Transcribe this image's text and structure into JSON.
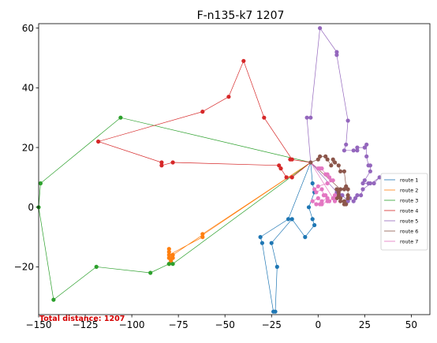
{
  "chart_data": {
    "type": "line",
    "title": "F-n135-k7 1207",
    "xlabel": "",
    "ylabel": "",
    "xlim": [
      -150,
      60
    ],
    "ylim": [
      -36,
      61.5
    ],
    "xticks": [
      -150,
      -125,
      -100,
      -75,
      -50,
      -25,
      0,
      25,
      50
    ],
    "yticks": [
      -20,
      0,
      20,
      40,
      60
    ],
    "grid": false,
    "legend_position": "right",
    "annotation": {
      "text": "Total distance: 1207",
      "color": "#d40000"
    },
    "depot": [
      -4,
      15
    ],
    "series": [
      {
        "name": "route 1",
        "color": "#1f77b4",
        "points": [
          [
            -4,
            15
          ],
          [
            -3,
            8
          ],
          [
            -2,
            5
          ],
          [
            -5,
            0
          ],
          [
            -3,
            -4
          ],
          [
            -2,
            -6
          ],
          [
            -7,
            -10
          ],
          [
            -14,
            -4
          ],
          [
            -25,
            -12
          ],
          [
            -22,
            -20
          ],
          [
            -23,
            -35
          ],
          [
            -24,
            -35
          ],
          [
            -30,
            -12
          ],
          [
            -31,
            -10
          ],
          [
            -16,
            -4
          ],
          [
            -4,
            15
          ]
        ]
      },
      {
        "name": "route 2",
        "color": "#ff7f0e",
        "points": [
          [
            -4,
            15
          ],
          [
            -78,
            -16
          ],
          [
            -80,
            -17
          ],
          [
            -80,
            -15
          ],
          [
            -80,
            -14
          ],
          [
            -79,
            -18
          ],
          [
            -80,
            -19
          ],
          [
            -78,
            -17
          ],
          [
            -80,
            -16
          ],
          [
            -62,
            -10
          ],
          [
            -62,
            -9
          ],
          [
            -4,
            15
          ]
        ]
      },
      {
        "name": "route 3",
        "color": "#2ca02c",
        "points": [
          [
            -4,
            15
          ],
          [
            -106,
            30
          ],
          [
            -149,
            8
          ],
          [
            -150,
            0
          ],
          [
            -142,
            -31
          ],
          [
            -119,
            -20
          ],
          [
            -90,
            -22
          ],
          [
            -80,
            -19
          ],
          [
            -78,
            -19
          ],
          [
            -4,
            15
          ]
        ]
      },
      {
        "name": "route 4",
        "color": "#d62728",
        "points": [
          [
            -4,
            15
          ],
          [
            -15,
            16
          ],
          [
            -14,
            16
          ],
          [
            -29,
            30
          ],
          [
            -40,
            49
          ],
          [
            -48,
            37
          ],
          [
            -62,
            32
          ],
          [
            -118,
            22
          ],
          [
            -84,
            15
          ],
          [
            -84,
            14
          ],
          [
            -78,
            15
          ],
          [
            -21,
            14
          ],
          [
            -20,
            13
          ],
          [
            -17,
            10
          ],
          [
            -14,
            10
          ],
          [
            -4,
            15
          ]
        ]
      },
      {
        "name": "route 5",
        "color": "#9467bd",
        "points": [
          [
            -4,
            15
          ],
          [
            -6,
            30
          ],
          [
            -4,
            30
          ],
          [
            1,
            60
          ],
          [
            10,
            52
          ],
          [
            10,
            51
          ],
          [
            16,
            29
          ],
          [
            15,
            21
          ],
          [
            14,
            19
          ],
          [
            19,
            19
          ],
          [
            21,
            19
          ],
          [
            21,
            20
          ],
          [
            25,
            20
          ],
          [
            26,
            21
          ],
          [
            26,
            17
          ],
          [
            27,
            14
          ],
          [
            28,
            14
          ],
          [
            28,
            12
          ],
          [
            25,
            9
          ],
          [
            24,
            8
          ],
          [
            27,
            8
          ],
          [
            28,
            8
          ],
          [
            30,
            8
          ],
          [
            33,
            10
          ],
          [
            24,
            6
          ],
          [
            23,
            4
          ],
          [
            21,
            4
          ],
          [
            20,
            3
          ],
          [
            19,
            2
          ],
          [
            17,
            3
          ],
          [
            16,
            2
          ],
          [
            13,
            4
          ],
          [
            12,
            4
          ],
          [
            10,
            5
          ],
          [
            -4,
            15
          ]
        ]
      },
      {
        "name": "route 6",
        "color": "#8c564b",
        "points": [
          [
            -4,
            15
          ],
          [
            0,
            16
          ],
          [
            1,
            17
          ],
          [
            4,
            17
          ],
          [
            5,
            16
          ],
          [
            7,
            14
          ],
          [
            8,
            16
          ],
          [
            9,
            15
          ],
          [
            11,
            14
          ],
          [
            12,
            12
          ],
          [
            14,
            12
          ],
          [
            15,
            7
          ],
          [
            14,
            6
          ],
          [
            16,
            6
          ],
          [
            16,
            4
          ],
          [
            16,
            3
          ],
          [
            14,
            2
          ],
          [
            14,
            1
          ],
          [
            15,
            1
          ],
          [
            12,
            2
          ],
          [
            12,
            3
          ],
          [
            11,
            4
          ],
          [
            10,
            3
          ],
          [
            11,
            5
          ],
          [
            10,
            6
          ],
          [
            12,
            6
          ],
          [
            -4,
            15
          ]
        ]
      },
      {
        "name": "route 7",
        "color": "#e377c2",
        "points": [
          [
            -4,
            15
          ],
          [
            0,
            13
          ],
          [
            1,
            13
          ],
          [
            2,
            13
          ],
          [
            4,
            11
          ],
          [
            5,
            11
          ],
          [
            6,
            10
          ],
          [
            7,
            9
          ],
          [
            8,
            9
          ],
          [
            5,
            8
          ],
          [
            0,
            7
          ],
          [
            -2,
            6
          ],
          [
            -1,
            5
          ],
          [
            2,
            6
          ],
          [
            3,
            4
          ],
          [
            4,
            4
          ],
          [
            5,
            3
          ],
          [
            2,
            2
          ],
          [
            0,
            3
          ],
          [
            -3,
            2
          ],
          [
            -1,
            1
          ],
          [
            1,
            1
          ],
          [
            2,
            1
          ],
          [
            5,
            2
          ],
          [
            6,
            2
          ],
          [
            8,
            3
          ],
          [
            9,
            4
          ],
          [
            9,
            2
          ],
          [
            -4,
            15
          ]
        ]
      }
    ]
  }
}
